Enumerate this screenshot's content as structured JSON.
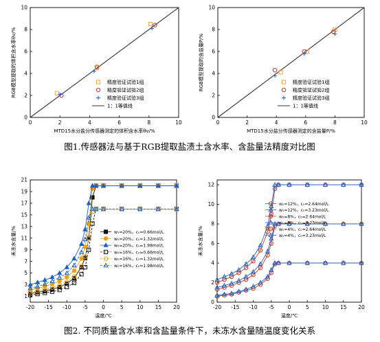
{
  "captions": {
    "fig1": "图1.传感器法与基于RGB提取盐渍土含水率、含盐量法精度对比图",
    "fig2": "图2. 不同质量含水率和含盐量条件下，未冻水含量随温度变化关系"
  },
  "colors": {
    "axis": "#000000",
    "orange": "#f5a623",
    "red": "#c0392b",
    "blue": "#1f5fbf",
    "black": "#111111",
    "gold": "#e8a317",
    "line_gray": "#333333"
  },
  "chart_data": [
    {
      "type": "scatter",
      "xlabel": "MTD15水分盐分传感器测定的体积含水率θv/%",
      "ylabel": "RGB模型提取的体积含水率θv/%",
      "xlim": [
        0,
        10
      ],
      "ylim": [
        0,
        10
      ],
      "xticks": [
        0,
        2,
        4,
        6,
        8,
        10
      ],
      "yticks": [
        0,
        2,
        4,
        6,
        8,
        10
      ],
      "legend_position": "bottom-right",
      "series": [
        {
          "name": "精度验证试验1组",
          "marker": "square",
          "color": "#f5a623",
          "points": [
            [
              1.8,
              2.2
            ],
            [
              4.5,
              4.5
            ],
            [
              8.1,
              8.5
            ]
          ]
        },
        {
          "name": "精度验证试验2组",
          "marker": "circle",
          "color": "#c0392b",
          "points": [
            [
              2.1,
              2.0
            ],
            [
              4.5,
              4.6
            ],
            [
              8.4,
              8.4
            ]
          ]
        },
        {
          "name": "精度验证试验3组",
          "marker": "plus",
          "color": "#1f5fbf",
          "points": [
            [
              2.0,
              2.1
            ],
            [
              4.3,
              4.2
            ],
            [
              8.2,
              8.1
            ]
          ]
        },
        {
          "name": "1：1等值线",
          "marker": "line",
          "color": "#333333",
          "points": [
            [
              0,
              0
            ],
            [
              10,
              10
            ]
          ]
        }
      ]
    },
    {
      "type": "scatter",
      "xlabel": "MTD15水分盐分传感器测定的含盐量P/%",
      "ylabel": "RGB模型提取的含盐量P/%",
      "xlim": [
        0,
        10
      ],
      "ylim": [
        0,
        10
      ],
      "xticks": [
        0,
        2,
        4,
        6,
        8,
        10
      ],
      "yticks": [
        0,
        2,
        4,
        6,
        8,
        10
      ],
      "legend_position": "bottom-right",
      "series": [
        {
          "name": "精度验证试验1组",
          "marker": "square",
          "color": "#f5a623",
          "points": [
            [
              4.3,
              4.1
            ],
            [
              6.1,
              6.0
            ],
            [
              8.0,
              8.0
            ]
          ]
        },
        {
          "name": "精度验证试验2组",
          "marker": "circle",
          "color": "#c0392b",
          "points": [
            [
              3.9,
              4.3
            ],
            [
              5.9,
              6.0
            ],
            [
              7.9,
              7.8
            ]
          ]
        },
        {
          "name": "精度验证试验3组",
          "marker": "plus",
          "color": "#1f5fbf",
          "points": [
            [
              3.9,
              3.8
            ],
            [
              5.9,
              5.8
            ],
            [
              8.0,
              7.6
            ]
          ]
        },
        {
          "name": "1：1等值线",
          "marker": "line",
          "color": "#333333",
          "points": [
            [
              0,
              0
            ],
            [
              10,
              10
            ]
          ]
        }
      ]
    },
    {
      "type": "line",
      "xlabel": "温度/℃",
      "ylabel": "未冻水含量/%",
      "xlim": [
        -20,
        20
      ],
      "ylim": [
        0,
        21
      ],
      "xticks": [
        -20,
        -15,
        -10,
        -5,
        0,
        5,
        10,
        15,
        20
      ],
      "yticks": [
        1,
        3,
        5,
        7,
        9,
        11,
        13,
        15,
        17,
        19,
        21
      ],
      "legend_position": "center-right",
      "x": [
        -20,
        -18,
        -16,
        -14,
        -12,
        -10,
        -8,
        -6,
        -5,
        -4,
        -3,
        -2,
        0,
        5,
        10,
        15,
        20
      ],
      "series": [
        {
          "name": "w₀=20%，c₀=0.66mol/L",
          "marker": "square",
          "color": "#111111",
          "values": [
            1.5,
            1.7,
            1.9,
            2.2,
            2.6,
            3.2,
            4.1,
            6.0,
            7.6,
            11.0,
            18.0,
            20.0,
            20.0,
            20.0,
            20.0,
            20.0,
            20.0
          ]
        },
        {
          "name": "w₀=20%，c₀=1.32mol/L",
          "marker": "circle",
          "color": "#e8a317",
          "values": [
            2.1,
            2.4,
            2.7,
            3.1,
            3.6,
            4.3,
            5.4,
            7.5,
            9.5,
            13.5,
            19.5,
            20.0,
            20.0,
            20.0,
            20.0,
            20.0,
            20.0
          ]
        },
        {
          "name": "w₀=20%，c₀=1.98mol/L",
          "marker": "triangle",
          "color": "#1f5fbf",
          "values": [
            3.0,
            3.4,
            3.8,
            4.3,
            5.0,
            6.0,
            7.5,
            10.0,
            12.5,
            17.0,
            20.0,
            20.0,
            20.0,
            20.0,
            20.0,
            20.0,
            20.0
          ]
        },
        {
          "name": "w₀=16%，c₀=0.66mol/L",
          "marker": "square",
          "color": "#111111",
          "values": [
            1.2,
            1.4,
            1.6,
            1.8,
            2.1,
            2.6,
            3.3,
            4.8,
            6.0,
            9.0,
            13.5,
            16.0,
            16.0,
            16.0,
            16.0,
            16.0,
            16.0
          ]
        },
        {
          "name": "w₀=16%，c₀=1.32mol/L",
          "marker": "circle",
          "color": "#e8a317",
          "values": [
            1.7,
            1.9,
            2.2,
            2.5,
            2.9,
            3.5,
            4.4,
            6.2,
            7.8,
            11.0,
            15.5,
            16.0,
            16.0,
            16.0,
            16.0,
            16.0,
            16.0
          ]
        },
        {
          "name": "w₀=16%，c₀=1.98mol/L",
          "marker": "triangle",
          "color": "#1f5fbf",
          "values": [
            2.4,
            2.7,
            3.1,
            3.6,
            4.2,
            5.0,
            6.3,
            8.6,
            10.8,
            14.5,
            16.0,
            16.0,
            16.0,
            16.0,
            16.0,
            16.0,
            16.0
          ]
        }
      ]
    },
    {
      "type": "line",
      "xlabel": "温度/℃",
      "ylabel": "未冻水含量/%",
      "xlim": [
        -20,
        20
      ],
      "ylim": [
        0,
        12.5
      ],
      "xticks": [
        -20,
        -15,
        -10,
        -5,
        0,
        5,
        10,
        15,
        20
      ],
      "yticks": [
        0,
        2,
        4,
        6,
        8,
        10,
        12
      ],
      "legend_position": "center-right",
      "x": [
        -20,
        -18,
        -16,
        -14,
        -12,
        -10,
        -8,
        -6,
        -5,
        -4,
        -3,
        0,
        5,
        10,
        15,
        20
      ],
      "series": [
        {
          "name": "w₀=12%，c₀=2.64mol/L",
          "marker": "circle",
          "color": "#c0392b",
          "values": [
            2.0,
            2.3,
            2.6,
            3.0,
            3.5,
            4.2,
            5.3,
            7.2,
            9.0,
            11.6,
            12.0,
            12.0,
            12.0,
            12.0,
            12.0,
            12.0
          ]
        },
        {
          "name": "w₀=12%，c₀=3.23mol/L",
          "marker": "triangle",
          "color": "#1f5fbf",
          "values": [
            2.3,
            2.6,
            2.9,
            3.3,
            3.9,
            4.6,
            5.8,
            7.8,
            9.8,
            12.0,
            12.0,
            12.0,
            12.0,
            12.0,
            12.0,
            12.0
          ]
        },
        {
          "name": "w₀=8%，c₀=2.64mol/L",
          "marker": "circle",
          "color": "#c0392b",
          "values": [
            1.3,
            1.5,
            1.7,
            2.0,
            2.3,
            2.8,
            3.5,
            4.8,
            6.0,
            7.8,
            8.0,
            8.0,
            8.0,
            8.0,
            8.0,
            8.0
          ]
        },
        {
          "name": "w₀=8%，c₀=3.23mol/L",
          "marker": "triangle",
          "color": "#1f5fbf",
          "values": [
            1.5,
            1.7,
            1.9,
            2.2,
            2.6,
            3.1,
            3.9,
            5.2,
            6.5,
            8.0,
            8.0,
            8.0,
            8.0,
            8.0,
            8.0,
            8.0
          ]
        },
        {
          "name": "w₀=4%，c₀=2.64mol/L",
          "marker": "circle",
          "color": "#c0392b",
          "values": [
            0.6,
            0.7,
            0.8,
            1.0,
            1.2,
            1.4,
            1.8,
            2.4,
            3.0,
            3.9,
            4.0,
            4.0,
            4.0,
            4.0,
            4.0,
            4.0
          ]
        },
        {
          "name": "w₀=4%，c₀=3.23mol/L",
          "marker": "triangle",
          "color": "#1f5fbf",
          "values": [
            0.7,
            0.8,
            0.9,
            1.1,
            1.3,
            1.6,
            2.0,
            2.6,
            3.3,
            4.0,
            4.0,
            4.0,
            4.0,
            4.0,
            4.0,
            4.0
          ]
        }
      ]
    }
  ]
}
